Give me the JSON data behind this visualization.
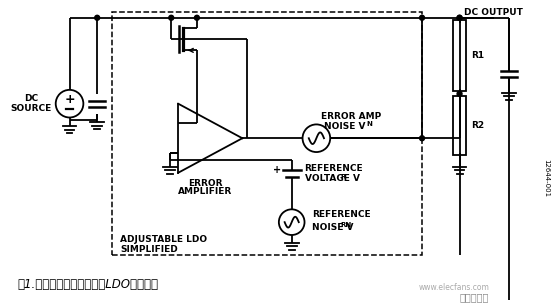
{
  "fig_width": 5.58,
  "fig_height": 3.04,
  "dpi": 100,
  "bg_color": "#ffffff",
  "title_text": "图1.显示内部噪声源的可调LDO简化框图",
  "id_text": "12644-001",
  "dc_source_label": "DC\nSOURCE",
  "error_amp_noise_label1": "ERROR AMP",
  "error_amp_noise_label2": "NOISE V",
  "error_amp_noise_sub": "N",
  "error_amp_label1": "ERROR",
  "error_amp_label2": "AMPLIFIER",
  "ref_voltage_label1": "REFERENCE",
  "ref_voltage_label2": "VOLTAGE V",
  "ref_voltage_sub": "R",
  "simplified_label1": "SIMPLIFIED",
  "simplified_label2": "ADJUSTABLE LDO",
  "ref_noise_label1": "REFERENCE",
  "ref_noise_label2": "NOISE V",
  "ref_noise_sub": "RN",
  "dc_output_label": "DC OUTPUT",
  "r1_label": "R1",
  "r2_label": "R2",
  "watermark": "电子发烧友",
  "watermark_url": "www.elecfans.com"
}
